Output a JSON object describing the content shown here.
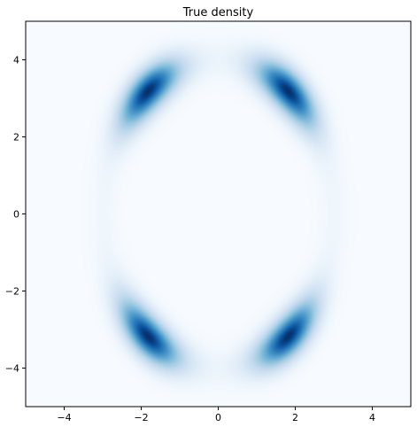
{
  "chart_data": {
    "type": "heatmap",
    "title": "True density",
    "xlabel": "",
    "ylabel": "",
    "xlim": [
      -5,
      5
    ],
    "ylim": [
      -5,
      5
    ],
    "xticks": [
      -4,
      -2,
      0,
      2,
      4
    ],
    "yticks": [
      -4,
      -2,
      0,
      2,
      4
    ],
    "xtick_labels": [
      "−4",
      "−2",
      "0",
      "2",
      "4"
    ],
    "ytick_labels": [
      "−4",
      "−2",
      "0",
      "2",
      "4"
    ],
    "grid": false,
    "colormap": "Blues",
    "colors": {
      "low": "#f7fbff",
      "high": "#08306b"
    },
    "density_structure": {
      "description_of_mixture_peaks": "four arc-shaped modes on a ring",
      "peaks": [
        {
          "x": -2,
          "y": 3.5
        },
        {
          "x": 2,
          "y": 3.5
        },
        {
          "x": -2,
          "y": -3.5
        },
        {
          "x": 2,
          "y": -3.5
        }
      ],
      "ring_center": [
        0,
        0
      ],
      "ring_radius_x": 3.0,
      "ring_radius_y": 4.0
    }
  }
}
